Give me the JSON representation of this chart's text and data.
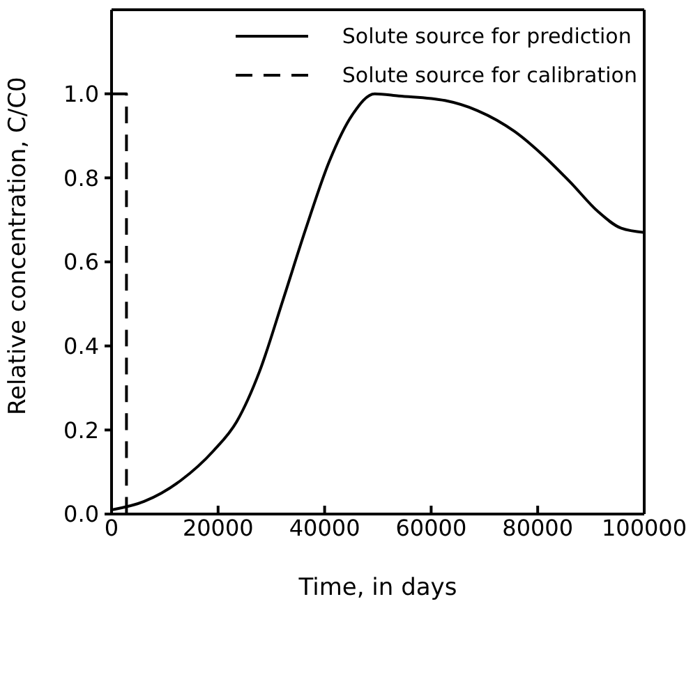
{
  "chart_data": {
    "type": "line",
    "xlabel": "Time, in days",
    "ylabel": "Relative concentration, C/C0",
    "xlim": [
      0,
      100000
    ],
    "xticks": [
      0,
      20000,
      40000,
      60000,
      80000,
      100000
    ],
    "ylim": [
      0,
      1.2
    ],
    "yticks": [
      {
        "value": 0,
        "label": "0.0"
      },
      {
        "value": 0.2,
        "label": "0.2"
      },
      {
        "value": 0.4,
        "label": "0.4"
      },
      {
        "value": 0.6,
        "label": "0.6"
      },
      {
        "value": 0.8,
        "label": "0.8"
      },
      {
        "value": 1,
        "label": "1.0"
      }
    ],
    "legend": "top right",
    "grid": false,
    "series": [
      {
        "name": "Solute source for prediction",
        "color": "#000000",
        "line_style": "solid",
        "x": [
          0,
          6100,
          13000,
          19100,
          23500,
          27800,
          32200,
          36500,
          40900,
          45200,
          49400,
          53900,
          62600,
          68700,
          75700,
          80900,
          86100,
          91300,
          95700,
          100000
        ],
        "values": [
          0.01,
          0.03,
          0.08,
          0.15,
          0.22,
          0.34,
          0.51,
          0.68,
          0.84,
          0.95,
          1.0,
          0.995,
          0.984,
          0.96,
          0.91,
          0.855,
          0.79,
          0.72,
          0.68,
          0.67
        ]
      },
      {
        "name": "Solute source for calibration",
        "color": "#000000",
        "line_style": "dashed",
        "x": [
          0,
          2800,
          2800,
          100000
        ],
        "values": [
          1,
          1,
          0,
          0
        ]
      }
    ]
  }
}
